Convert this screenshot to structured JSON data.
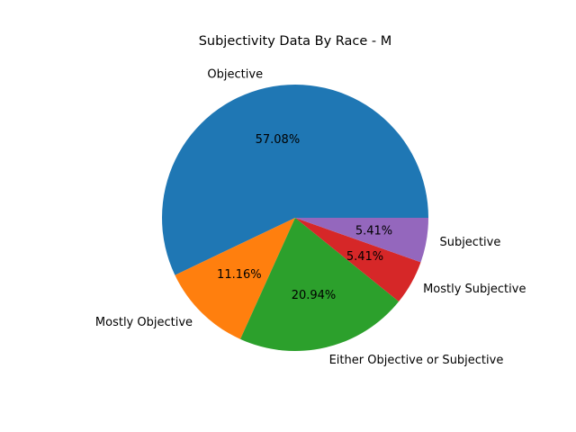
{
  "chart_data": {
    "type": "pie",
    "title": "Subjectivity Data By Race - M",
    "start_angle_deg": 0,
    "direction": "counterclockwise",
    "slices": [
      {
        "label": "Objective",
        "value": 57.08,
        "pct_label": "57.08%",
        "color": "#1f77b4"
      },
      {
        "label": "Mostly Objective",
        "value": 11.16,
        "pct_label": "11.16%",
        "color": "#ff7f0e"
      },
      {
        "label": "Either Objective or Subjective",
        "value": 20.94,
        "pct_label": "20.94%",
        "color": "#2ca02c"
      },
      {
        "label": "Mostly Subjective",
        "value": 5.41,
        "pct_label": "5.41%",
        "color": "#d62728"
      },
      {
        "label": "Subjective",
        "value": 5.41,
        "pct_label": "5.41%",
        "color": "#9467bd"
      }
    ]
  }
}
